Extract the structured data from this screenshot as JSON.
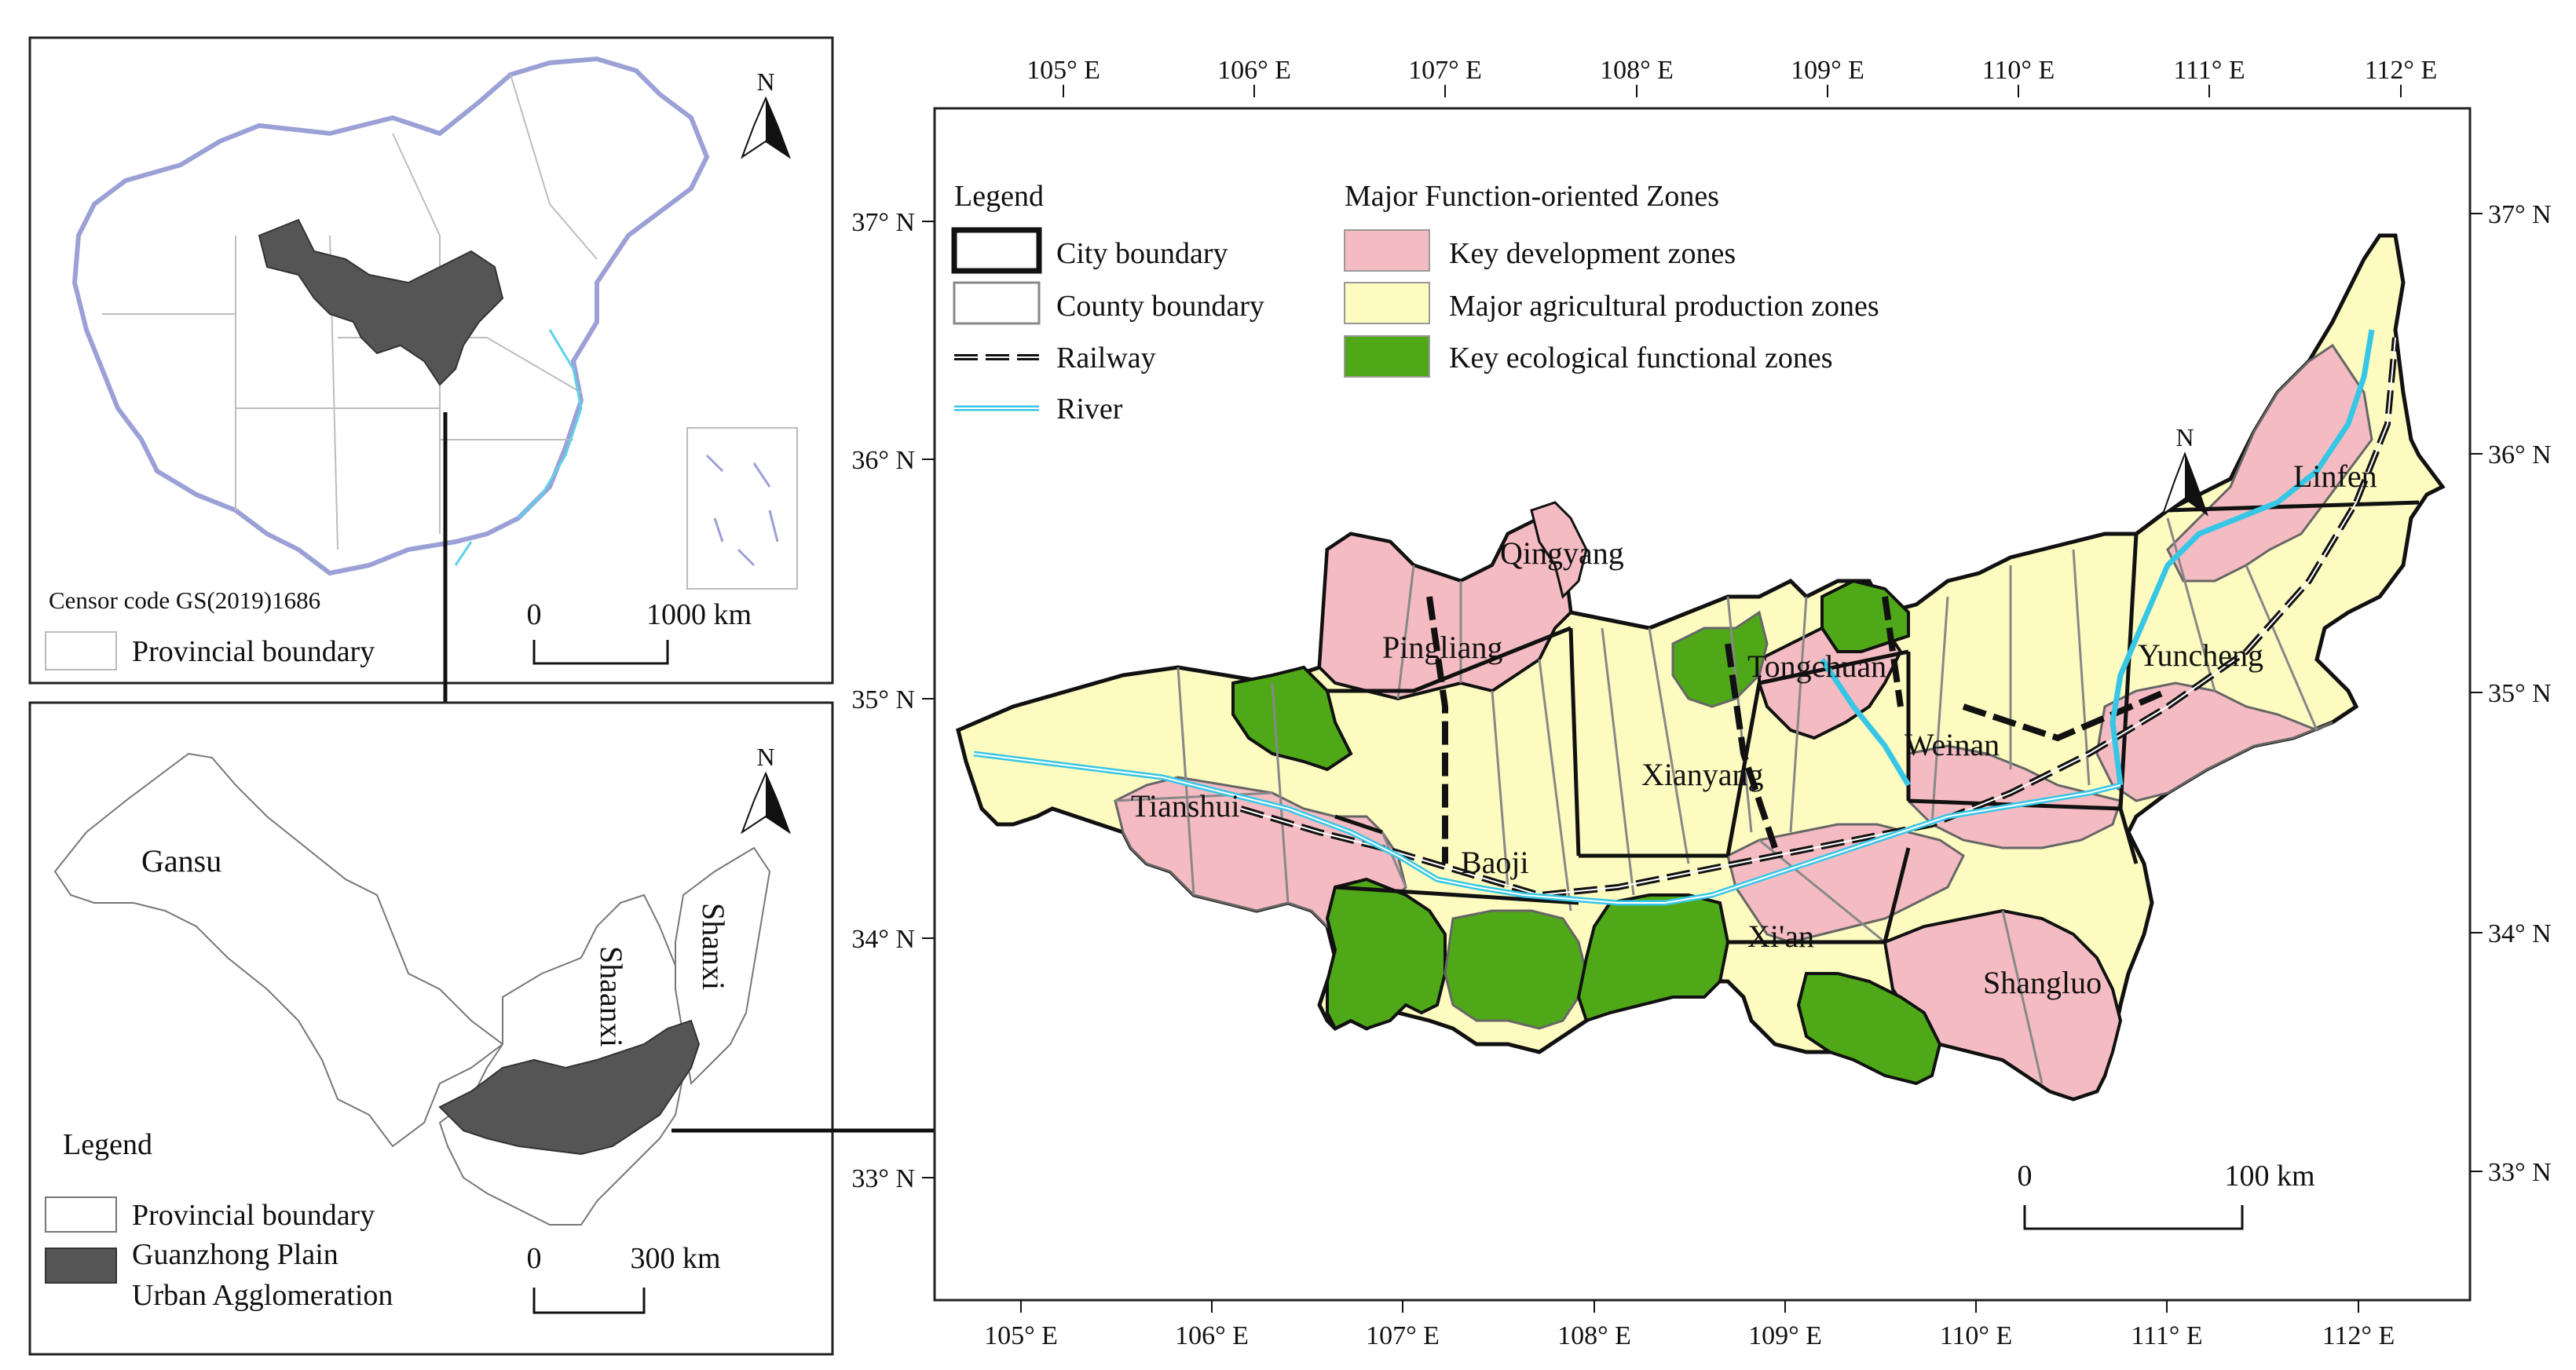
{
  "inset_china": {
    "censor_code": "Censor code GS(2019)1686",
    "legend_provincial": "Provincial boundary",
    "scale_start": "0",
    "scale_end": "1000 km",
    "north": "N"
  },
  "inset_region": {
    "labels": {
      "gansu": "Gansu",
      "shaanxi": "Shaanxi",
      "shanxi": "Shanxi"
    },
    "legend_title": "Legend",
    "legend_provincial": "Provincial boundary",
    "legend_guanzhong_line1": "Guanzhong Plain",
    "legend_guanzhong_line2": "Urban Agglomeration",
    "scale_start": "0",
    "scale_end": "300 km",
    "north": "N"
  },
  "main_map": {
    "north": "N",
    "legend_title": "Legend",
    "legend_items": [
      {
        "label": "City boundary"
      },
      {
        "label": "County boundary"
      },
      {
        "label": "Railway"
      },
      {
        "label": "River"
      }
    ],
    "zones_title": "Major Function-oriented Zones",
    "zones": [
      {
        "label": "Key development zones",
        "color": "#f4bcc2"
      },
      {
        "label": "Major agricultural production zones",
        "color": "#fdfbbf"
      },
      {
        "label": "Key ecological functional zones",
        "color": "#4fa818"
      }
    ],
    "longitudes": [
      "105° E",
      "106° E",
      "107° E",
      "108° E",
      "109° E",
      "110° E",
      "111° E",
      "112° E"
    ],
    "latitudes": [
      "37° N",
      "36° N",
      "35° N",
      "34° N",
      "33° N"
    ],
    "cities": [
      "Qingyang",
      "Pingliang",
      "Tongchuan",
      "Linfen",
      "Yuncheng",
      "Weinan",
      "Xianyang",
      "Tianshui",
      "Baoji",
      "Xi'an",
      "Shangluo"
    ],
    "scale_start": "0",
    "scale_end": "100 km",
    "river_color": "#36c6e6",
    "guanzhong_color": "#555555"
  }
}
